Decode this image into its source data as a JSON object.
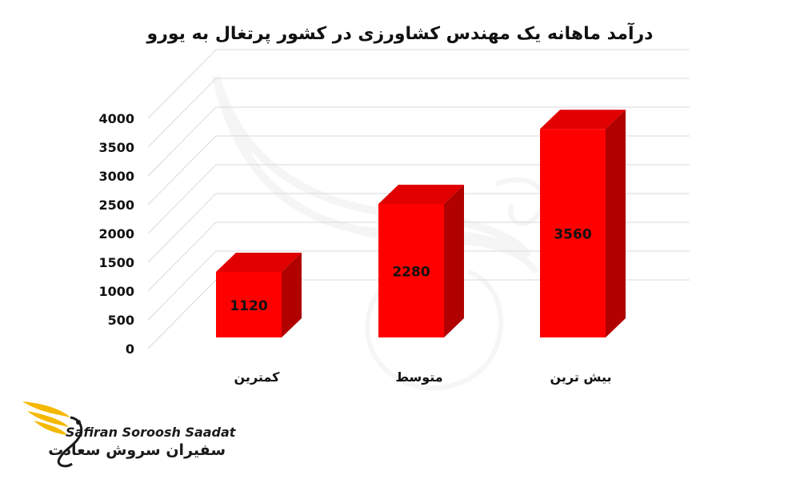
{
  "chart_data": {
    "type": "bar",
    "title": "درآمد ماهانه یک مهندس کشاورزی در کشور پرتغال به یورو",
    "categories": [
      "کمترین",
      "متوسط",
      "بیش ترین"
    ],
    "values": [
      1120,
      2280,
      3560
    ],
    "data_labels": [
      "1120",
      "2280",
      "3560"
    ],
    "ylim": [
      0,
      4000
    ],
    "ytick_step": 500,
    "ytick_labels": [
      "0",
      "500",
      "1000",
      "1500",
      "2000",
      "2500",
      "3000",
      "3500",
      "4000"
    ],
    "xlabel": "",
    "ylabel": "",
    "grid": true,
    "legend": "none",
    "style": "3d-bar",
    "colors": {
      "front": "#ff0000",
      "top": "#e00000",
      "side": "#b00000",
      "grid": "#d9d9d9",
      "label": "#111111"
    }
  },
  "logo": {
    "latin": "Safiran Soroosh Saadat",
    "persian": "سفیران سروش سعادت",
    "colors": {
      "wing": "#f5b800",
      "text": "#1b1b1b"
    }
  }
}
